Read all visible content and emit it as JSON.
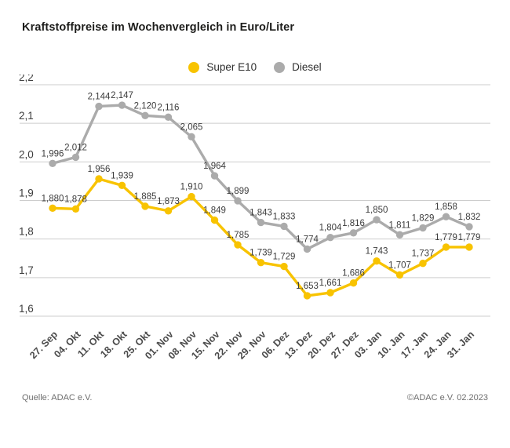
{
  "page": {
    "title": "Kraftstoffpreise im Wochenvergleich in Euro/Liter",
    "footer_left": "Quelle: ADAC e.V.",
    "footer_right": "©ADAC e.V. 02.2023"
  },
  "colors": {
    "super_e10": "#F8C300",
    "diesel": "#ABABAB",
    "grid": "#CDCDCD",
    "data_label": "#3C3C3C",
    "y_tick_label": "#3C3C3C",
    "x_tick_label": "#4B4B4B"
  },
  "chart_data": {
    "type": "line",
    "title": "Kraftstoffpreise im Wochenvergleich in Euro/Liter",
    "xlabel": "",
    "ylabel": "Euro/Liter",
    "grid": "horizontal",
    "legend_position": "top-center",
    "ylim": [
      1.6,
      2.2
    ],
    "ytick_step": 0.1,
    "yticks": [
      {
        "value": 2.2,
        "label": "2,2"
      },
      {
        "value": 2.1,
        "label": "2,1"
      },
      {
        "value": 2.0,
        "label": "2,0"
      },
      {
        "value": 1.9,
        "label": "1,9"
      },
      {
        "value": 1.8,
        "label": "1,8"
      },
      {
        "value": 1.7,
        "label": "1,7"
      },
      {
        "value": 1.6,
        "label": "1,6"
      }
    ],
    "categories": [
      "27. Sep",
      "04. Okt",
      "11. Okt",
      "18. Okt",
      "25. Okt",
      "01. Nov",
      "08. Nov",
      "15. Nov",
      "22. Nov",
      "29. Nov",
      "06. Dez",
      "13. Dez",
      "20. Dez",
      "27. Dez",
      "03. Jan",
      "10. Jan",
      "17. Jan",
      "24. Jan",
      "31. Jan"
    ],
    "series": [
      {
        "name": "Diesel",
        "color": "#ABABAB",
        "values": [
          1.996,
          2.012,
          2.144,
          2.147,
          2.12,
          2.116,
          2.065,
          1.964,
          1.899,
          1.843,
          1.833,
          1.774,
          1.804,
          1.816,
          1.85,
          1.811,
          1.829,
          1.858,
          1.832
        ],
        "labels": [
          "1,996",
          "2,012",
          "2,144",
          "2,147",
          "2,120",
          "2,116",
          "2,065",
          "1,964",
          "1,899",
          "1,843",
          "1,833",
          "1,774",
          "1,804",
          "1,816",
          "1,850",
          "1,811",
          "1,829",
          "1,858",
          "1,832"
        ]
      },
      {
        "name": "Super E10",
        "color": "#F8C300",
        "values": [
          1.88,
          1.878,
          1.956,
          1.939,
          1.885,
          1.873,
          1.91,
          1.849,
          1.785,
          1.739,
          1.729,
          1.653,
          1.661,
          1.686,
          1.743,
          1.707,
          1.737,
          1.779,
          1.779
        ],
        "labels": [
          "1,880",
          "1,878",
          "1,956",
          "1,939",
          "1,885",
          "1,873",
          "1,910",
          "1,849",
          "1,785",
          "1,739",
          "1,729",
          "1,653",
          "1,661",
          "1,686",
          "1,743",
          "1,707",
          "1,737",
          "1,779",
          "1,779"
        ]
      }
    ],
    "legend_order": [
      "Super E10",
      "Diesel"
    ]
  }
}
